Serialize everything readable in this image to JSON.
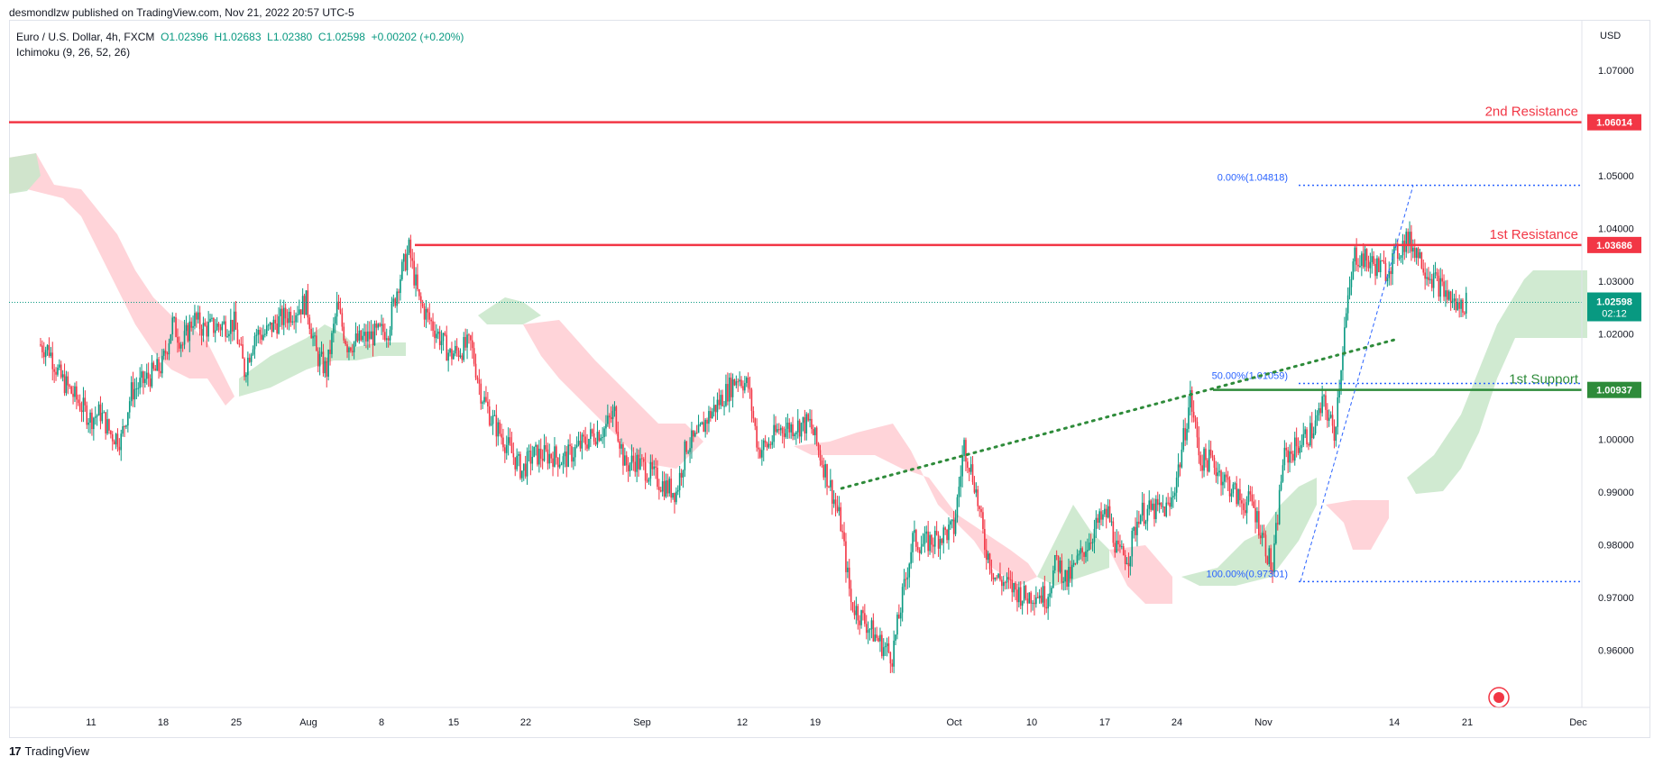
{
  "header": {
    "publisher": "desmondlzw published on TradingView.com, Nov 21, 2022 20:57 UTC-5",
    "symbol": "Euro / U.S. Dollar, 4h, FXCM",
    "ohlc": {
      "o": "O1.02396",
      "h": "H1.02683",
      "l": "L1.02380",
      "c": "C1.02598",
      "chg": "+0.00202 (+0.20%)"
    },
    "indicator": "Ichimoku (9, 26, 52, 26)",
    "currency": "USD"
  },
  "footer": {
    "brand": "TradingView",
    "logo_glyph": "17"
  },
  "colors": {
    "up": "#089981",
    "down": "#f23645",
    "resistance": "#f23645",
    "support": "#2e8b3a",
    "fib": "#2962ff",
    "cloud_bull": "#c8e6c9",
    "cloud_bear": "#ffcdd2",
    "trend": "#2e8b3a",
    "grid": "#e0e3eb",
    "axis_text": "#131722"
  },
  "chart_data": {
    "type": "candlestick",
    "timeframe": "4h",
    "ylim": [
      0.954,
      1.077
    ],
    "y_ticks": [
      "0.96000",
      "0.97000",
      "0.98000",
      "0.99000",
      "1.00000",
      "1.01000",
      "1.02000",
      "1.03000",
      "1.04000",
      "1.05000",
      "1.06000",
      "1.07000"
    ],
    "x_ticks": [
      "11",
      "18",
      "25",
      "Aug",
      "8",
      "15",
      "22",
      "Sep",
      "12",
      "19",
      "Oct",
      "10",
      "17",
      "24",
      "Nov",
      "14",
      "21",
      "Dec"
    ],
    "price_path": [
      [
        "Jul 06",
        1.018
      ],
      [
        "Jul 07",
        1.017
      ],
      [
        "Jul 08",
        1.012
      ],
      [
        "Jul 11",
        1.004
      ],
      [
        "Jul 12",
        1.005
      ],
      [
        "Jul 13",
        1.001
      ],
      [
        "Jul 14",
        1.0
      ],
      [
        "Jul 15",
        1.009
      ],
      [
        "Jul 18",
        1.014
      ],
      [
        "Jul 19",
        1.022
      ],
      [
        "Jul 20",
        1.018
      ],
      [
        "Jul 21",
        1.023
      ],
      [
        "Jul 22",
        1.021
      ],
      [
        "Jul 25",
        1.022
      ],
      [
        "Jul 26",
        1.013
      ],
      [
        "Jul 27",
        1.02
      ],
      [
        "Jul 28",
        1.02
      ],
      [
        "Jul 29",
        1.022
      ],
      [
        "Aug 01",
        1.026
      ],
      [
        "Aug 02",
        1.016
      ],
      [
        "Aug 03",
        1.013
      ],
      [
        "Aug 04",
        1.025
      ],
      [
        "Aug 05",
        1.018
      ],
      [
        "Aug 08",
        1.02
      ],
      [
        "Aug 09",
        1.021
      ],
      [
        "Aug 10",
        1.03
      ],
      [
        "Aug 11",
        1.036
      ],
      [
        "Aug 12",
        1.026
      ],
      [
        "Aug 15",
        1.016
      ],
      [
        "Aug 16",
        1.017
      ],
      [
        "Aug 17",
        1.018
      ],
      [
        "Aug 18",
        1.009
      ],
      [
        "Aug 19",
        1.004
      ],
      [
        "Aug 22",
        0.994
      ],
      [
        "Aug 23",
        0.997
      ],
      [
        "Aug 24",
        0.997
      ],
      [
        "Aug 25",
        0.997
      ],
      [
        "Aug 26",
        0.996
      ],
      [
        "Aug 29",
        1.001
      ],
      [
        "Aug 30",
        1.002
      ],
      [
        "Aug 31",
        1.005
      ],
      [
        "Sep 01",
        0.995
      ],
      [
        "Sep 02",
        0.996
      ],
      [
        "Sep 05",
        0.991
      ],
      [
        "Sep 06",
        0.99
      ],
      [
        "Sep 07",
        0.999
      ],
      [
        "Sep 08",
        1.0
      ],
      [
        "Sep 09",
        1.004
      ],
      [
        "Sep 12",
        1.012
      ],
      [
        "Sep 13",
        1.01
      ],
      [
        "Sep 14",
        0.998
      ],
      [
        "Sep 15",
        0.999
      ],
      [
        "Sep 16",
        1.002
      ],
      [
        "Sep 19",
        1.003
      ],
      [
        "Sep 20",
        0.997
      ],
      [
        "Sep 21",
        0.991
      ],
      [
        "Sep 22",
        0.984
      ],
      [
        "Sep 23",
        0.969
      ],
      [
        "Sep 26",
        0.961
      ],
      [
        "Sep 27",
        0.959
      ],
      [
        "Sep 28",
        0.97
      ],
      [
        "Sep 29",
        0.981
      ],
      [
        "Sep 30",
        0.98
      ],
      [
        "Oct 03",
        0.983
      ],
      [
        "Oct 04",
        0.999
      ],
      [
        "Oct 05",
        0.992
      ],
      [
        "Oct 06",
        0.98
      ],
      [
        "Oct 07",
        0.974
      ],
      [
        "Oct 10",
        0.97
      ],
      [
        "Oct 11",
        0.971
      ],
      [
        "Oct 12",
        0.97
      ],
      [
        "Oct 13",
        0.977
      ],
      [
        "Oct 14",
        0.973
      ],
      [
        "Oct 17",
        0.984
      ],
      [
        "Oct 18",
        0.986
      ],
      [
        "Oct 19",
        0.978
      ],
      [
        "Oct 20",
        0.978
      ],
      [
        "Oct 21",
        0.986
      ],
      [
        "Oct 24",
        0.987
      ],
      [
        "Oct 25",
        0.996
      ],
      [
        "Oct 26",
        1.008
      ],
      [
        "Oct 27",
        0.996
      ],
      [
        "Oct 28",
        0.996
      ],
      [
        "Oct 31",
        0.988
      ],
      [
        "Nov 01",
        0.988
      ],
      [
        "Nov 02",
        0.982
      ],
      [
        "Nov 03",
        0.975
      ],
      [
        "Nov 04",
        0.996
      ],
      [
        "Nov 07",
        1.002
      ],
      [
        "Nov 08",
        1.007
      ],
      [
        "Nov 09",
        1.001
      ],
      [
        "Nov 10",
        1.021
      ],
      [
        "Nov 11",
        1.035
      ],
      [
        "Nov 14",
        1.032
      ],
      [
        "Nov 15",
        1.035
      ],
      [
        "Nov 16",
        1.038
      ],
      [
        "Nov 17",
        1.036
      ],
      [
        "Nov 18",
        1.032
      ],
      [
        "Nov 21",
        1.025
      ],
      [
        "Nov 21 20:00",
        1.026
      ]
    ],
    "levels": [
      {
        "label": "2nd Resistance",
        "value": 1.06014,
        "tag": "1.06014",
        "color": "#f23645"
      },
      {
        "label": "1st Resistance",
        "value": 1.03686,
        "tag": "1.03686",
        "color": "#f23645"
      },
      {
        "label": "1st Support",
        "value": 1.00937,
        "tag": "1.00937",
        "color": "#2e8b3a"
      }
    ],
    "last_price": {
      "value": 1.02598,
      "label": "1.02598",
      "countdown": "02:12"
    },
    "fibonacci": [
      {
        "label": "0.00%(1.04818)",
        "value": 1.04818
      },
      {
        "label": "50.00%(1.01059)",
        "value": 1.01059
      },
      {
        "label": "100.00%(0.97301)",
        "value": 0.97301
      }
    ],
    "trendline": {
      "from": [
        "Sep 22",
        0.9907
      ],
      "to": [
        "Nov 15",
        1.019
      ]
    }
  }
}
